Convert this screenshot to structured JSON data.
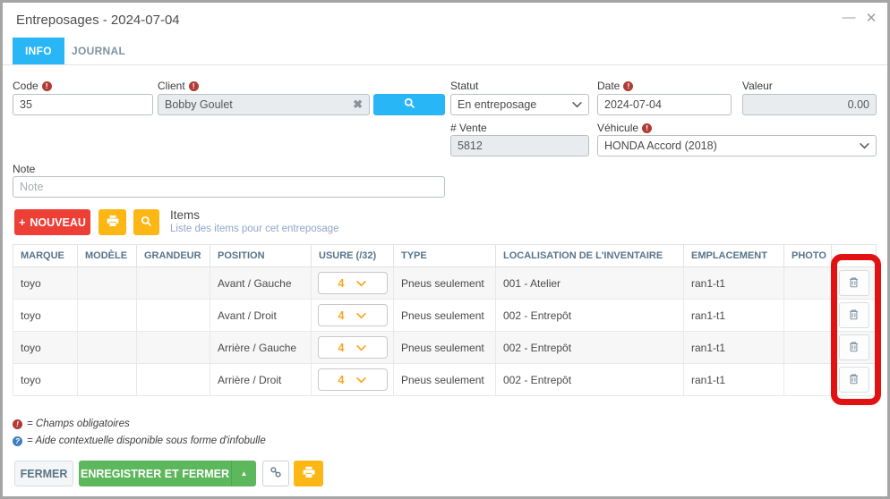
{
  "window": {
    "title": "Entreposages - 2024-07-04"
  },
  "icons": {
    "minimize": "—",
    "close": "✕",
    "clear": "✖",
    "plus": "+",
    "caret_up": "▲",
    "required": "!",
    "help": "?"
  },
  "tabs": {
    "info": "INFO",
    "journal": "JOURNAL"
  },
  "form": {
    "code": {
      "label": "Code",
      "value": "35"
    },
    "client": {
      "label": "Client",
      "value": "Bobby Goulet"
    },
    "statut": {
      "label": "Statut",
      "value": "En entreposage"
    },
    "date": {
      "label": "Date",
      "value": "2024-07-04"
    },
    "valeur": {
      "label": "Valeur",
      "value": "0.00"
    },
    "vente": {
      "label": "# Vente",
      "value": "5812"
    },
    "vehicule": {
      "label": "Véhicule",
      "value": "HONDA Accord (2018)"
    },
    "note": {
      "label": "Note",
      "placeholder": "Note"
    }
  },
  "items": {
    "nouveau_label": "NOUVEAU",
    "title": "Items",
    "subtitle": "Liste des items pour cet entreposage"
  },
  "table": {
    "headers": {
      "marque": "MARQUE",
      "modele": "MODÈLE",
      "grandeur": "GRANDEUR",
      "position": "POSITION",
      "usure": "USURE (/32)",
      "type": "TYPE",
      "localisation": "LOCALISATION DE L'INVENTAIRE",
      "emplacement": "EMPLACEMENT",
      "photo": "PHOTO"
    },
    "rows": [
      {
        "marque": "toyo",
        "modele": "",
        "grandeur": "",
        "position": "Avant / Gauche",
        "usure": "4",
        "type": "Pneus seulement",
        "localisation": "001 - Atelier",
        "emplacement": "ran1-t1",
        "photo": ""
      },
      {
        "marque": "toyo",
        "modele": "",
        "grandeur": "",
        "position": "Avant / Droit",
        "usure": "4",
        "type": "Pneus seulement",
        "localisation": "002 - Entrepôt",
        "emplacement": "ran1-t1",
        "photo": ""
      },
      {
        "marque": "toyo",
        "modele": "",
        "grandeur": "",
        "position": "Arrière / Gauche",
        "usure": "4",
        "type": "Pneus seulement",
        "localisation": "002 - Entrepôt",
        "emplacement": "ran1-t1",
        "photo": ""
      },
      {
        "marque": "toyo",
        "modele": "",
        "grandeur": "",
        "position": "Arrière / Droit",
        "usure": "4",
        "type": "Pneus seulement",
        "localisation": "002 - Entrepôt",
        "emplacement": "ran1-t1",
        "photo": ""
      }
    ]
  },
  "legend": {
    "required": {
      "text": "= Champs obligatoires"
    },
    "help": {
      "text": "= Aide contextuelle disponible sous forme d'infobulle"
    }
  },
  "footer": {
    "fermer": "FERMER",
    "enregistrer": "ENREGISTRER ET FERMER"
  },
  "colors": {
    "accent_blue": "#29b6f6",
    "danger_red": "#ee3f37",
    "warning_yellow": "#fdb714",
    "success_green": "#5db75d",
    "highlight_red": "#e31212"
  }
}
